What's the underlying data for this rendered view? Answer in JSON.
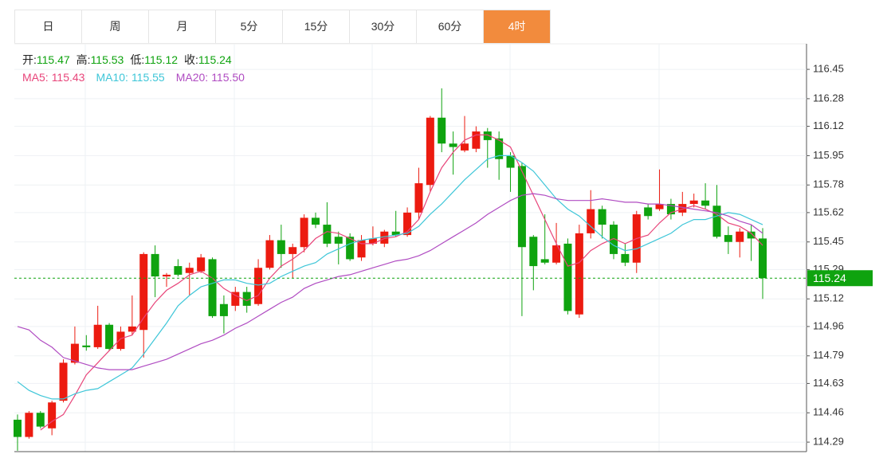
{
  "tabs": {
    "items": [
      "日",
      "周",
      "月",
      "5分",
      "15分",
      "30分",
      "60分",
      "4时"
    ],
    "active": 7
  },
  "chart_data": {
    "type": "candlestick",
    "info": [
      {
        "label": "开:",
        "value": "115.47"
      },
      {
        "label": "高:",
        "value": "115.53"
      },
      {
        "label": "低:",
        "value": "115.12"
      },
      {
        "label": "收:",
        "value": "115.24"
      }
    ],
    "up_color": "#ec1b10",
    "down_color": "#0fa30f",
    "open": [
      114.42,
      114.32,
      114.46,
      114.37,
      114.53,
      114.75,
      114.85,
      114.84,
      114.97,
      114.83,
      114.93,
      114.94,
      115.38,
      115.25,
      115.31,
      115.27,
      115.28,
      115.35,
      115.09,
      115.08,
      115.16,
      115.09,
      115.3,
      115.46,
      115.38,
      115.42,
      115.59,
      115.55,
      115.48,
      115.48,
      115.36,
      115.44,
      115.44,
      115.51,
      115.49,
      115.62,
      115.78,
      116.17,
      116.02,
      115.98,
      115.99,
      116.09,
      116.05,
      115.95,
      115.89,
      115.48,
      115.35,
      115.33,
      115.44,
      115.03,
      115.5,
      115.64,
      115.55,
      115.38,
      115.33,
      115.65,
      115.64,
      115.67,
      115.62,
      115.67,
      115.69,
      115.66,
      115.49,
      115.45,
      115.51,
      115.47
    ],
    "high": [
      114.45,
      114.47,
      114.47,
      114.53,
      114.77,
      114.96,
      114.91,
      115.08,
      114.98,
      114.96,
      115.14,
      115.39,
      115.43,
      115.27,
      115.35,
      115.33,
      115.38,
      115.36,
      115.14,
      115.19,
      115.19,
      115.35,
      115.49,
      115.55,
      115.44,
      115.61,
      115.62,
      115.68,
      115.51,
      115.5,
      115.49,
      115.54,
      115.52,
      115.63,
      115.65,
      115.88,
      116.18,
      116.34,
      116.09,
      116.18,
      116.12,
      116.11,
      116.09,
      115.97,
      115.91,
      115.49,
      115.61,
      115.56,
      115.47,
      115.55,
      115.75,
      115.66,
      115.57,
      115.44,
      115.63,
      115.67,
      115.87,
      115.7,
      115.74,
      115.73,
      115.79,
      115.78,
      115.54,
      115.53,
      115.55,
      115.53
    ],
    "low": [
      114.24,
      114.31,
      114.37,
      114.33,
      114.52,
      114.74,
      114.82,
      114.83,
      114.82,
      114.82,
      114.91,
      114.78,
      115.13,
      115.19,
      115.25,
      115.14,
      115.27,
      115.01,
      114.92,
      115.05,
      115.04,
      115.08,
      115.29,
      115.3,
      115.24,
      115.39,
      115.53,
      115.42,
      115.32,
      115.34,
      115.34,
      115.43,
      115.42,
      115.48,
      115.48,
      115.58,
      115.74,
      115.97,
      115.84,
      115.97,
      115.97,
      115.88,
      115.81,
      115.74,
      115.02,
      115.17,
      115.32,
      115.32,
      115.03,
      115.01,
      115.47,
      115.47,
      115.35,
      115.31,
      115.27,
      115.58,
      115.63,
      115.58,
      115.6,
      115.65,
      115.64,
      115.47,
      115.38,
      115.36,
      115.34,
      115.12
    ],
    "close": [
      114.32,
      114.46,
      114.38,
      114.52,
      114.75,
      114.86,
      114.84,
      114.97,
      114.83,
      114.93,
      114.96,
      115.38,
      115.25,
      115.26,
      115.26,
      115.3,
      115.36,
      115.02,
      115.02,
      115.16,
      115.08,
      115.3,
      115.46,
      115.38,
      115.42,
      115.59,
      115.55,
      115.44,
      115.44,
      115.35,
      115.46,
      115.47,
      115.51,
      115.49,
      115.62,
      115.79,
      116.17,
      116.02,
      116.0,
      116.02,
      116.09,
      116.04,
      115.93,
      115.88,
      115.42,
      115.31,
      115.33,
      115.43,
      115.05,
      115.5,
      115.64,
      115.55,
      115.38,
      115.33,
      115.61,
      115.6,
      115.67,
      115.61,
      115.67,
      115.69,
      115.66,
      115.48,
      115.45,
      115.51,
      115.47,
      115.24
    ],
    "series": [
      {
        "name": "MA5:",
        "value_label": "115.43",
        "color": "#e8457a",
        "values": [
          null,
          null,
          114.36,
          114.41,
          114.45,
          114.56,
          114.68,
          114.75,
          114.82,
          114.89,
          114.91,
          115.01,
          115.1,
          115.17,
          115.21,
          115.26,
          115.28,
          115.24,
          115.18,
          115.14,
          115.11,
          115.14,
          115.24,
          115.31,
          115.35,
          115.4,
          115.47,
          115.51,
          115.5,
          115.47,
          115.44,
          115.44,
          115.47,
          115.48,
          115.51,
          115.58,
          115.74,
          115.88,
          115.97,
          116.04,
          116.07,
          116.07,
          116.04,
          116.0,
          115.86,
          115.72,
          115.58,
          115.44,
          115.31,
          115.33,
          115.4,
          115.44,
          115.47,
          115.44,
          115.47,
          115.49,
          115.56,
          115.62,
          115.64,
          115.66,
          115.64,
          115.61,
          115.56,
          115.54,
          115.5,
          115.43
        ]
      },
      {
        "name": "MA10:",
        "value_label": "115.55",
        "color": "#3ec6d8",
        "values": [
          114.64,
          114.59,
          114.56,
          114.54,
          114.54,
          114.57,
          114.59,
          114.6,
          114.64,
          114.68,
          114.72,
          114.8,
          114.89,
          114.98,
          115.08,
          115.14,
          115.19,
          115.21,
          115.23,
          115.23,
          115.21,
          115.2,
          115.21,
          115.25,
          115.28,
          115.31,
          115.33,
          115.38,
          115.41,
          115.44,
          115.46,
          115.47,
          115.48,
          115.49,
          115.5,
          115.54,
          115.61,
          115.67,
          115.74,
          115.81,
          115.87,
          115.93,
          115.95,
          115.95,
          115.91,
          115.86,
          115.78,
          115.7,
          115.64,
          115.6,
          115.54,
          115.48,
          115.43,
          115.4,
          115.41,
          115.44,
          115.47,
          115.5,
          115.55,
          115.58,
          115.58,
          115.6,
          115.62,
          115.61,
          115.58,
          115.55
        ]
      },
      {
        "name": "MA20:",
        "value_label": "115.50",
        "color": "#b04cc2",
        "values": [
          114.96,
          114.94,
          114.88,
          114.84,
          114.78,
          114.76,
          114.74,
          114.72,
          114.71,
          114.71,
          114.71,
          114.73,
          114.75,
          114.77,
          114.8,
          114.83,
          114.86,
          114.88,
          114.91,
          114.95,
          114.98,
          115.02,
          115.06,
          115.1,
          115.13,
          115.18,
          115.21,
          115.23,
          115.25,
          115.26,
          115.28,
          115.3,
          115.32,
          115.34,
          115.35,
          115.37,
          115.4,
          115.44,
          115.48,
          115.52,
          115.56,
          115.61,
          115.65,
          115.69,
          115.72,
          115.73,
          115.72,
          115.7,
          115.69,
          115.69,
          115.69,
          115.7,
          115.69,
          115.68,
          115.68,
          115.67,
          115.67,
          115.66,
          115.65,
          115.64,
          115.63,
          115.62,
          115.6,
          115.57,
          115.55,
          115.5
        ]
      }
    ],
    "last_price": 115.24,
    "last_price_color": "#0fa30f",
    "ylim": [
      114.235,
      116.598
    ],
    "yticks": [
      116.45,
      116.28,
      116.12,
      115.95,
      115.78,
      115.62,
      115.45,
      115.29,
      115.12,
      114.96,
      114.79,
      114.63,
      114.46,
      114.29
    ],
    "grid": true
  }
}
